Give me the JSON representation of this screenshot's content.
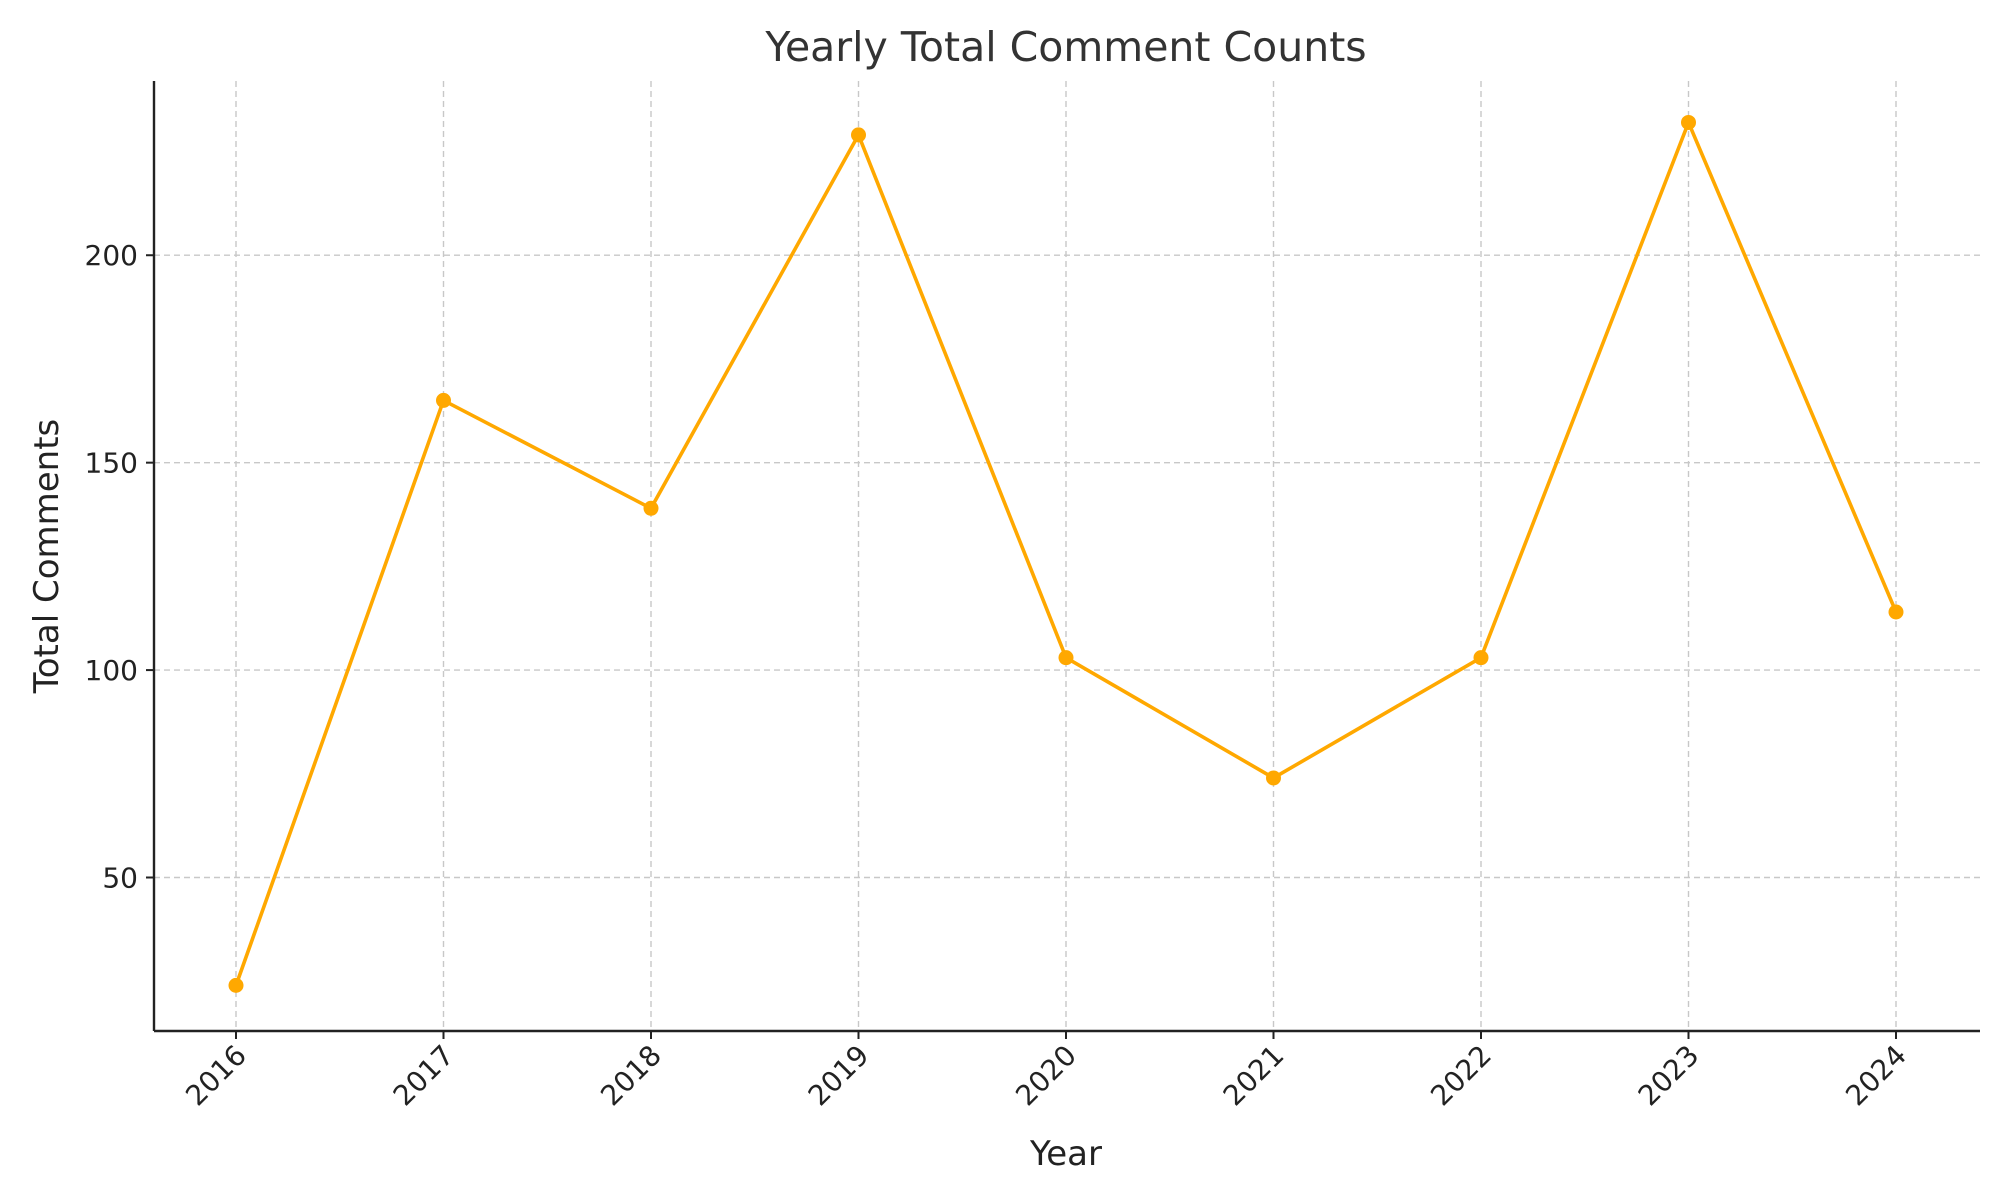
{
  "chart_data": {
    "type": "line",
    "title": "Yearly Total Comment Counts",
    "xlabel": "Year",
    "ylabel": "Total Comments",
    "categories": [
      "2016",
      "2017",
      "2018",
      "2019",
      "2020",
      "2021",
      "2022",
      "2023",
      "2024"
    ],
    "series": [
      {
        "values": [
          24,
          165,
          139,
          229,
          103,
          74,
          103,
          232,
          114
        ]
      }
    ],
    "ylim": [
      13,
      242
    ],
    "yticks": [
      50,
      100,
      150,
      200
    ],
    "grid": true,
    "colors": {
      "series": "#FFA800",
      "grid": "#c8c8c8",
      "axis": "#222222",
      "title": "#333333"
    }
  }
}
